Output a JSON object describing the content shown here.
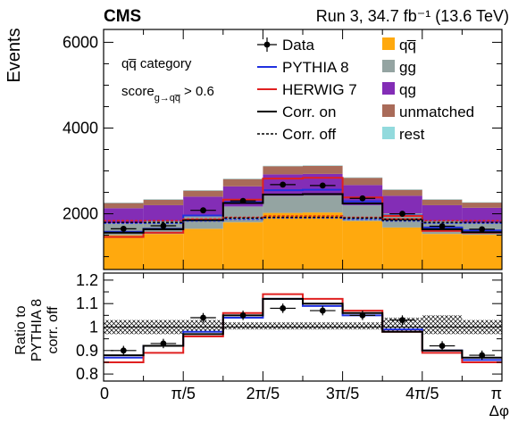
{
  "header": {
    "experiment": "CMS",
    "run_info": "Run 3, 34.7 fb⁻¹ (13.6 TeV)"
  },
  "annotations": {
    "category": "qq̅ category",
    "score_main": "score",
    "score_sub": "g→qq̅",
    "score_cut": "> 0.6"
  },
  "chart_data": [
    {
      "panel": "main",
      "type": "bar",
      "stacked": true,
      "ylabel": "Events",
      "ylim": [
        700,
        6300
      ],
      "yticks": [
        2000,
        4000,
        6000
      ],
      "ytick_labels": [
        "2000",
        "4000",
        "6000"
      ],
      "x_bins": 10,
      "xlim": [
        0,
        3.14159
      ],
      "stack_series": [
        {
          "name": "qq̅",
          "color": "#FFA90E",
          "values": [
            800,
            830,
            950,
            1100,
            1320,
            1330,
            1130,
            980,
            830,
            810
          ]
        },
        {
          "name": "gg",
          "color": "#94A4A2",
          "values": [
            280,
            300,
            330,
            370,
            400,
            400,
            370,
            330,
            300,
            280
          ]
        },
        {
          "name": "qg",
          "color": "#832DB6",
          "values": [
            350,
            370,
            420,
            470,
            500,
            500,
            470,
            410,
            370,
            350
          ]
        },
        {
          "name": "unmatched",
          "color": "#A96B59",
          "values": [
            120,
            130,
            140,
            170,
            190,
            190,
            170,
            140,
            130,
            120
          ]
        },
        {
          "name": "rest",
          "color": "#92DADD",
          "values": [
            10,
            10,
            10,
            10,
            10,
            10,
            10,
            10,
            10,
            10
          ]
        }
      ],
      "line_series": [
        {
          "name": "PYTHIA 8 Corr. on",
          "color": "#2030e0",
          "dash": "solid",
          "values": [
            1580,
            1650,
            1960,
            2270,
            2550,
            2560,
            2290,
            1960,
            1680,
            1610
          ]
        },
        {
          "name": "HERWIG 7 Corr. on",
          "color": "#e02020",
          "dash": "solid",
          "values": [
            1460,
            1560,
            1860,
            2330,
            2820,
            2840,
            2380,
            1950,
            1600,
            1560
          ]
        },
        {
          "name": "Corr. on (total)",
          "color": "#000000",
          "dash": "solid",
          "values": [
            1560,
            1640,
            1850,
            2250,
            2450,
            2460,
            2240,
            1870,
            1640,
            1570
          ]
        },
        {
          "name": "PYTHIA 8 Corr. off",
          "color": "#2030e0",
          "dash": "dashed",
          "values": [
            1780,
            1780,
            1830,
            1870,
            1900,
            1900,
            1870,
            1830,
            1780,
            1780
          ]
        },
        {
          "name": "HERWIG 7 Corr. off",
          "color": "#e02020",
          "dash": "dashed",
          "values": [
            1840,
            1840,
            1880,
            1920,
            1950,
            1950,
            1920,
            1880,
            1840,
            1840
          ]
        },
        {
          "name": "Corr. off (total)",
          "color": "#000000",
          "dash": "dashed",
          "values": [
            1800,
            1800,
            1850,
            1900,
            1920,
            1920,
            1900,
            1850,
            1800,
            1800
          ]
        }
      ],
      "data_points": {
        "name": "Data",
        "values": [
          1650,
          1720,
          2080,
          2300,
          2680,
          2660,
          2360,
          2000,
          1710,
          1640
        ],
        "errors": [
          40,
          40,
          45,
          50,
          55,
          55,
          50,
          45,
          40,
          40
        ]
      },
      "legend": {
        "left": [
          "Data",
          "PYTHIA 8",
          "HERWIG 7",
          "Corr. on",
          "Corr. off"
        ],
        "right": [
          "qq̅",
          "gg",
          "qg",
          "unmatched",
          "rest"
        ]
      }
    },
    {
      "panel": "ratio",
      "type": "line",
      "ylabel_lines": [
        "Ratio to",
        "PYTHIA 8",
        "corr. off"
      ],
      "ylim": [
        0.77,
        1.23
      ],
      "yticks": [
        0.8,
        0.9,
        1.0,
        1.1,
        1.2
      ],
      "ytick_labels": [
        "0.8",
        "0.9",
        "1",
        "1.1",
        "1.2"
      ],
      "xlabel": "Δφ",
      "xtick_labels": [
        "0",
        "π/5",
        "2π/5",
        "3π/5",
        "4π/5",
        "π"
      ],
      "x_bins": 10,
      "series": [
        {
          "name": "PYTHIA 8",
          "color": "#2030e0",
          "values": [
            0.87,
            0.92,
            0.98,
            1.04,
            1.12,
            1.09,
            1.05,
            0.99,
            0.9,
            0.86
          ]
        },
        {
          "name": "HERWIG 7",
          "color": "#e02020",
          "values": [
            0.85,
            0.89,
            0.96,
            1.06,
            1.14,
            1.12,
            1.07,
            0.98,
            0.89,
            0.85
          ]
        },
        {
          "name": "Corr. on",
          "color": "#000000",
          "values": [
            0.88,
            0.92,
            0.97,
            1.05,
            1.12,
            1.1,
            1.06,
            0.98,
            0.9,
            0.87
          ]
        }
      ],
      "uncertainty_band": {
        "lower": [
          0.97,
          0.97,
          0.98,
          0.99,
          0.99,
          0.99,
          0.99,
          0.98,
          0.97,
          0.97
        ],
        "upper": [
          1.03,
          1.03,
          1.03,
          1.02,
          1.02,
          1.02,
          1.02,
          1.04,
          1.05,
          1.03
        ]
      },
      "data_points": {
        "values": [
          0.9,
          0.93,
          1.04,
          1.05,
          1.08,
          1.07,
          1.05,
          1.03,
          0.92,
          0.88
        ],
        "errors": [
          0.02,
          0.02,
          0.02,
          0.02,
          0.02,
          0.02,
          0.02,
          0.02,
          0.02,
          0.02
        ]
      }
    }
  ]
}
